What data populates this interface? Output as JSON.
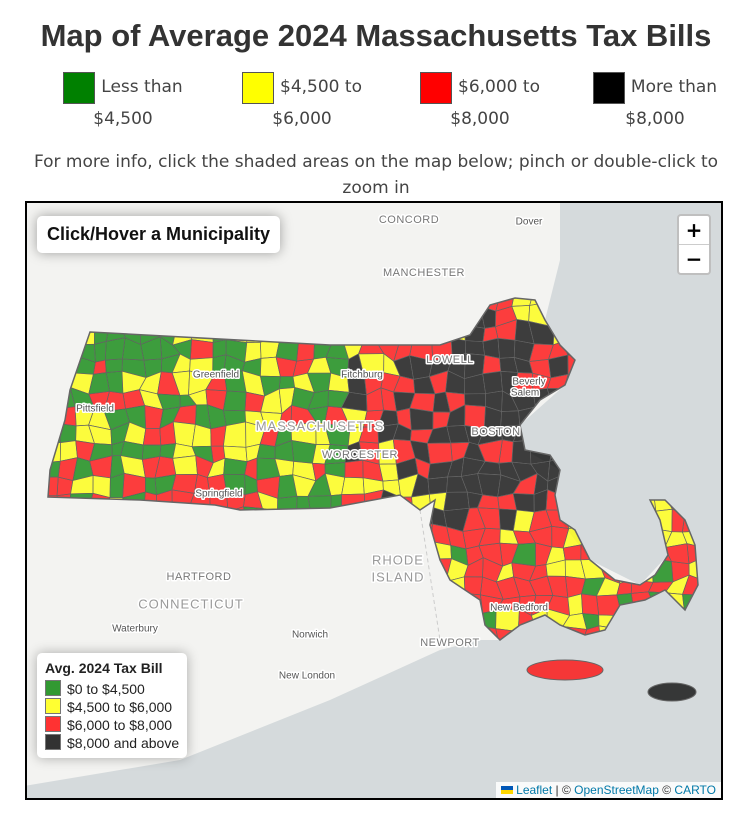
{
  "title": "Map of Average 2024 Massachusetts Tax Bills",
  "legend": [
    {
      "label": "Less than $4,500",
      "color": "#008000"
    },
    {
      "label": "$4,500 to $6,000",
      "color": "#ffff00"
    },
    {
      "label": "$6,000 to $8,000",
      "color": "#ff0000"
    },
    {
      "label": "More than $8,000",
      "color": "#000000"
    }
  ],
  "note": "For more info, click the shaded areas on the map below; pinch or double-click to zoom in",
  "map": {
    "info_box": "Click/Hover a Municipality",
    "zoom_in": "+",
    "zoom_out": "−",
    "place_labels": [
      "CONCORD",
      "Dover",
      "MANCHESTER",
      "LOWELL",
      "Greenfield",
      "Fitchburg",
      "Beverly",
      "Salem",
      "Pittsfield",
      "MASSACHUSETTS",
      "BOSTON",
      "WORCESTER",
      "Springfield",
      "RHODE",
      "ISLAND",
      "HARTFORD",
      "CONNECTICUT",
      "Waterbury",
      "Norwich",
      "NEWPORT",
      "New Bedford",
      "New London"
    ],
    "legend": {
      "title": "Avg. 2024 Tax Bill",
      "items": [
        "$0 to $4,500",
        "$4,500 to $6,000",
        "$6,000 to $8,000",
        "$8,000 and above"
      ]
    },
    "attribution": [
      "Leaflet",
      "| ©",
      "OpenStreetMap",
      "©",
      "CARTO"
    ]
  }
}
